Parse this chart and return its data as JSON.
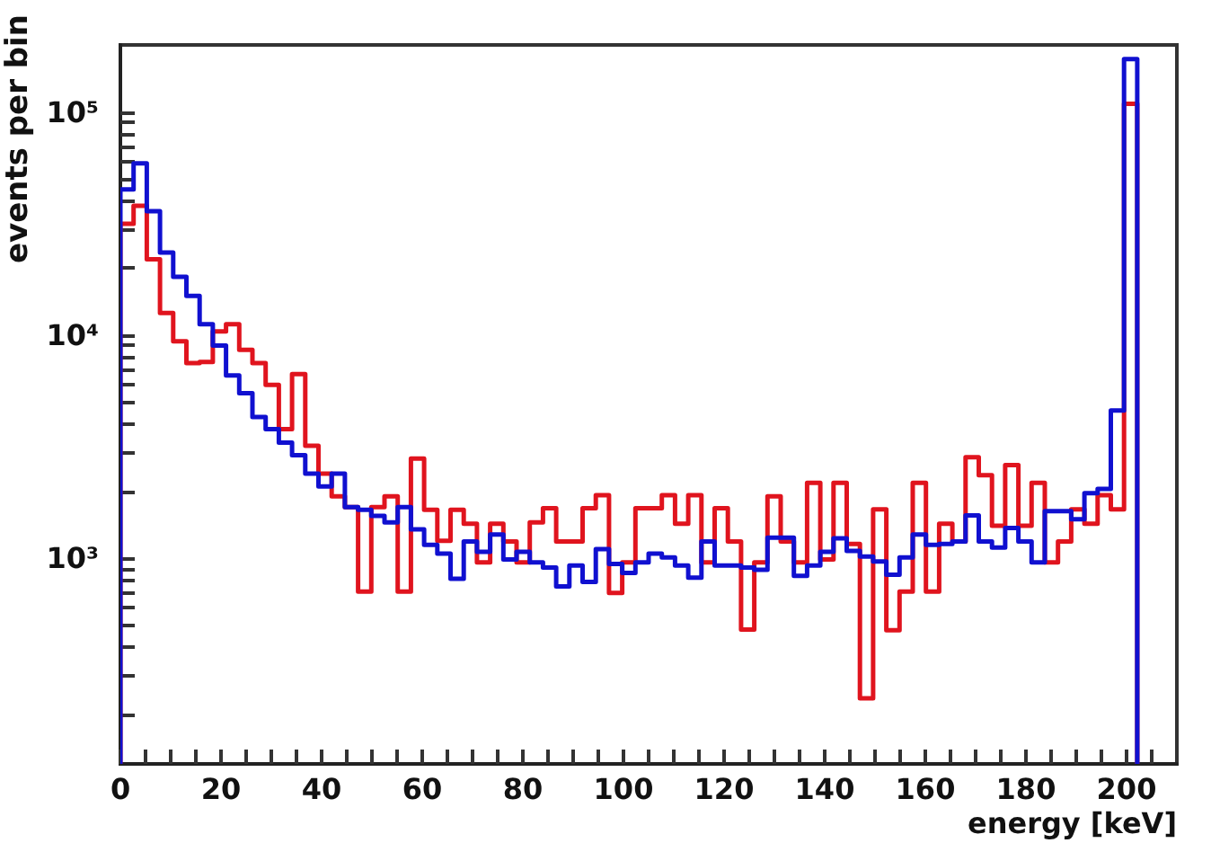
{
  "chart_data": {
    "type": "histogram",
    "xlabel": "energy [keV]",
    "ylabel": "events per bin",
    "log": "y",
    "grid": false,
    "bins": [
      0,
      2.625,
      5.25,
      7.875,
      10.5,
      13.125,
      15.75,
      18.375,
      21,
      23.625,
      26.25,
      28.875,
      31.5,
      34.125,
      36.75,
      39.375,
      42,
      44.625,
      47.25,
      49.875,
      52.5,
      55.125,
      57.75,
      60.375,
      63,
      65.625,
      68.25,
      70.875,
      73.5,
      76.125,
      78.75,
      81.375,
      84,
      86.625,
      89.25,
      91.875,
      94.5,
      97.125,
      99.75,
      102.375,
      105,
      107.625,
      110.25,
      112.875,
      115.5,
      118.125,
      120.75,
      123.375,
      126,
      128.625,
      131.25,
      133.875,
      136.5,
      139.125,
      141.75,
      144.375,
      147,
      149.625,
      152.25,
      154.875,
      157.5,
      160.125,
      162.75,
      165.375,
      168,
      170.625,
      173.25,
      175.875,
      178.5,
      181.125,
      183.75,
      186.375,
      189,
      191.625,
      194.25,
      196.875,
      199.5,
      202.125
    ],
    "series": [
      {
        "color": "#e0141e",
        "values": [
          31600,
          38000,
          21900,
          12600,
          9400,
          7500,
          7600,
          10400,
          11200,
          8600,
          7500,
          6000,
          3800,
          6700,
          3200,
          2400,
          1900,
          1700,
          710,
          1700,
          1900,
          710,
          2800,
          1650,
          1200,
          1650,
          1430,
          960,
          1430,
          1190,
          960,
          1450,
          1680,
          1190,
          1190,
          1680,
          1920,
          700,
          960,
          1680,
          1680,
          1920,
          1430,
          1920,
          960,
          1680,
          1190,
          480,
          960,
          1900,
          1190,
          960,
          2180,
          990,
          2180,
          1160,
          236,
          1660,
          477,
          710,
          2180,
          710,
          1430,
          1190,
          2840,
          2360,
          1400,
          2620,
          1400,
          2180,
          960,
          1190,
          1660,
          1430,
          1920,
          1660,
          109000
        ]
      },
      {
        "color": "#1010d0",
        "values": [
          45000,
          59000,
          36000,
          23500,
          18300,
          15000,
          11200,
          9000,
          6600,
          5500,
          4300,
          3800,
          3300,
          2900,
          2400,
          2100,
          2400,
          1700,
          1650,
          1550,
          1450,
          1700,
          1350,
          1150,
          1050,
          810,
          1190,
          1070,
          1280,
          990,
          1070,
          960,
          910,
          750,
          930,
          785,
          1100,
          945,
          860,
          960,
          1050,
          1010,
          930,
          820,
          1190,
          930,
          930,
          910,
          890,
          1240,
          1240,
          835,
          930,
          1070,
          1230,
          1080,
          1020,
          970,
          845,
          1010,
          1280,
          1150,
          1160,
          1190,
          1560,
          1190,
          1120,
          1370,
          1190,
          960,
          1630,
          1630,
          1500,
          1960,
          2050,
          4600,
          173000
        ]
      }
    ],
    "xlim": [
      0,
      210
    ],
    "xticks": [
      0,
      {
        "value": 5,
        "label": null
      },
      {
        "value": 10,
        "label": null
      },
      {
        "value": 15,
        "label": null
      },
      20,
      {
        "value": 25,
        "label": null
      },
      {
        "value": 30,
        "label": null
      },
      {
        "value": 35,
        "label": null
      },
      40,
      {
        "value": 45,
        "label": null
      },
      {
        "value": 50,
        "label": null
      },
      {
        "value": 55,
        "label": null
      },
      60,
      {
        "value": 65,
        "label": null
      },
      {
        "value": 70,
        "label": null
      },
      {
        "value": 75,
        "label": null
      },
      80,
      {
        "value": 85,
        "label": null
      },
      {
        "value": 90,
        "label": null
      },
      {
        "value": 95,
        "label": null
      },
      100,
      {
        "value": 105,
        "label": null
      },
      {
        "value": 110,
        "label": null
      },
      {
        "value": 115,
        "label": null
      },
      120,
      {
        "value": 125,
        "label": null
      },
      {
        "value": 130,
        "label": null
      },
      {
        "value": 135,
        "label": null
      },
      140,
      {
        "value": 145,
        "label": null
      },
      {
        "value": 150,
        "label": null
      },
      {
        "value": 155,
        "label": null
      },
      160,
      {
        "value": 165,
        "label": null
      },
      {
        "value": 170,
        "label": null
      },
      {
        "value": 175,
        "label": null
      },
      180,
      {
        "value": 185,
        "label": null
      },
      {
        "value": 190,
        "label": null
      },
      {
        "value": 195,
        "label": null
      },
      200,
      {
        "value": 205,
        "label": null
      }
    ],
    "ylim": [
      120,
      200000
    ],
    "yticks": [
      {
        "value": 200,
        "label": null
      },
      {
        "value": 300,
        "label": null
      },
      {
        "value": 400,
        "label": null
      },
      {
        "value": 500,
        "label": null
      },
      {
        "value": 600,
        "label": null
      },
      {
        "value": 700,
        "label": null
      },
      {
        "value": 800,
        "label": null
      },
      {
        "value": 900,
        "label": null
      },
      {
        "value": 1000,
        "label": "10³"
      },
      {
        "value": 2000,
        "label": null
      },
      {
        "value": 3000,
        "label": null
      },
      {
        "value": 4000,
        "label": null
      },
      {
        "value": 5000,
        "label": null
      },
      {
        "value": 6000,
        "label": null
      },
      {
        "value": 7000,
        "label": null
      },
      {
        "value": 8000,
        "label": null
      },
      {
        "value": 9000,
        "label": null
      },
      {
        "value": 10000,
        "label": "10⁴"
      },
      {
        "value": 20000,
        "label": null
      },
      {
        "value": 30000,
        "label": null
      },
      {
        "value": 40000,
        "label": null
      },
      {
        "value": 50000,
        "label": null
      },
      {
        "value": 60000,
        "label": null
      },
      {
        "value": 70000,
        "label": null
      },
      {
        "value": 80000,
        "label": null
      },
      {
        "value": 90000,
        "label": null
      },
      {
        "value": 100000,
        "label": "10⁵"
      }
    ]
  }
}
